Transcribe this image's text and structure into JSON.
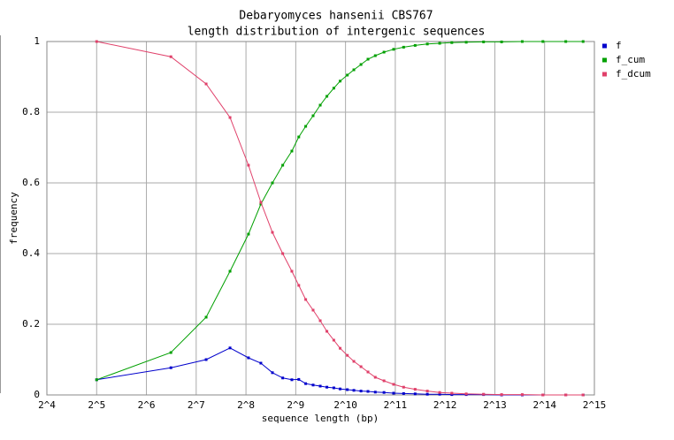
{
  "chart_data": {
    "type": "line",
    "title": "Debaryomyces hansenii CBS767",
    "subtitle": "length distribution of intergenic sequences",
    "x_label": "sequence length (bp)",
    "y_label": "frequency",
    "xscale": "log",
    "log_base": 2,
    "xlim": [
      16,
      32768
    ],
    "xticks": [
      {
        "value": 16,
        "label": "2^4"
      },
      {
        "value": 32,
        "label": "2^5"
      },
      {
        "value": 64,
        "label": "2^6"
      },
      {
        "value": 128,
        "label": "2^7"
      },
      {
        "value": 256,
        "label": "2^8"
      },
      {
        "value": 512,
        "label": "2^9"
      },
      {
        "value": 1024,
        "label": "2^10"
      },
      {
        "value": 2048,
        "label": "2^11"
      },
      {
        "value": 4096,
        "label": "2^12"
      },
      {
        "value": 8192,
        "label": "2^13"
      },
      {
        "value": 16384,
        "label": "2^14"
      },
      {
        "value": 32768,
        "label": "2^15"
      }
    ],
    "ylim": [
      0,
      1
    ],
    "yticks": [
      0,
      0.2,
      0.4,
      0.6,
      0.8,
      1
    ],
    "grid": true,
    "legend": "right",
    "x": [
      32,
      90,
      147,
      205,
      265,
      315,
      370,
      427,
      485,
      534,
      588,
      652,
      720,
      790,
      870,
      950,
      1050,
      1150,
      1270,
      1400,
      1550,
      1750,
      2000,
      2300,
      2700,
      3200,
      3800,
      4500,
      5500,
      7000,
      9000,
      12000,
      16000,
      22000,
      28000
    ],
    "series": [
      {
        "name": "f",
        "color": "#0000cc",
        "values": [
          0.043,
          0.077,
          0.1,
          0.133,
          0.105,
          0.09,
          0.063,
          0.048,
          0.043,
          0.044,
          0.032,
          0.028,
          0.025,
          0.022,
          0.02,
          0.017,
          0.015,
          0.013,
          0.011,
          0.01,
          0.008,
          0.007,
          0.005,
          0.004,
          0.003,
          0.002,
          0.002,
          0.001,
          0.001,
          0.001,
          0,
          0,
          0,
          0,
          0
        ]
      },
      {
        "name": "f_cum",
        "color": "#00a000",
        "values": [
          0.043,
          0.12,
          0.22,
          0.35,
          0.455,
          0.54,
          0.6,
          0.65,
          0.69,
          0.73,
          0.76,
          0.79,
          0.82,
          0.845,
          0.868,
          0.888,
          0.905,
          0.92,
          0.935,
          0.95,
          0.96,
          0.97,
          0.978,
          0.984,
          0.989,
          0.993,
          0.995,
          0.997,
          0.998,
          0.999,
          0.999,
          1,
          1,
          1,
          1
        ]
      },
      {
        "name": "f_dcum",
        "color": "#e0406a",
        "values": [
          1,
          0.957,
          0.88,
          0.785,
          0.65,
          0.545,
          0.46,
          0.4,
          0.35,
          0.31,
          0.27,
          0.24,
          0.21,
          0.18,
          0.155,
          0.132,
          0.112,
          0.095,
          0.08,
          0.065,
          0.05,
          0.04,
          0.03,
          0.022,
          0.016,
          0.011,
          0.007,
          0.005,
          0.003,
          0.002,
          0.001,
          0.001,
          0,
          0,
          0
        ]
      }
    ]
  }
}
